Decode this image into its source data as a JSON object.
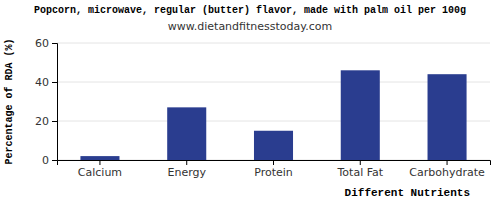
{
  "chart_data": {
    "type": "bar",
    "title": "Popcorn, microwave, regular (butter) flavor, made with palm oil per 100g",
    "subtitle": "www.dietandfitnesstoday.com",
    "x_label": "Different Nutrients",
    "y_label": "Percentage of RDA (%)",
    "categories": [
      "Calcium",
      "Energy",
      "Protein",
      "Total Fat",
      "Carbohydrate"
    ],
    "values": [
      2,
      27,
      15,
      46,
      44
    ],
    "color": "#2a3d8f",
    "ylim": [
      0,
      60
    ],
    "yticks": [
      0,
      20,
      40,
      60
    ],
    "grid": true
  }
}
